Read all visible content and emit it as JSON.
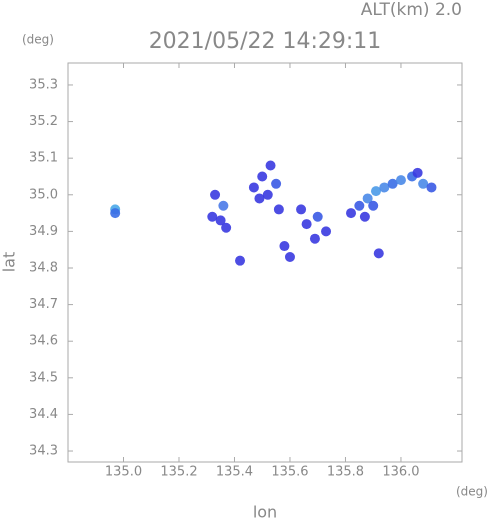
{
  "chart_data": {
    "type": "scatter",
    "title": "2021/05/22 14:29:11",
    "subtitle": "ALT(km) 2.0",
    "y_unit": "(deg)",
    "x_unit": "(deg)",
    "xlabel": "lon",
    "ylabel": "lat",
    "xlim": [
      134.8,
      136.22
    ],
    "ylim": [
      34.27,
      35.36
    ],
    "xticks": [
      {
        "value": 135,
        "label": "135.0"
      },
      135.2,
      135.4,
      135.6,
      135.8,
      {
        "value": 136,
        "label": "136.0"
      }
    ],
    "yticks": [
      34.3,
      34.4,
      34.5,
      34.6,
      34.7,
      34.8,
      34.9,
      {
        "value": 35,
        "label": "35.0"
      },
      35.1,
      35.2,
      35.3
    ],
    "x": [
      134.97,
      134.97,
      135.33,
      135.36,
      135.35,
      135.32,
      135.37,
      135.47,
      135.5,
      135.53,
      135.55,
      135.52,
      135.49,
      135.56,
      135.58,
      135.6,
      135.42,
      135.66,
      135.7,
      135.73,
      135.69,
      135.64,
      135.82,
      135.85,
      135.88,
      135.91,
      135.94,
      135.97,
      136.0,
      136.04,
      136.08,
      136.11,
      135.9,
      135.87,
      136.06,
      135.92
    ],
    "y": [
      34.96,
      34.95,
      35.0,
      34.97,
      34.93,
      34.94,
      34.91,
      35.02,
      35.05,
      35.08,
      35.03,
      35.0,
      34.99,
      34.96,
      34.86,
      34.83,
      34.82,
      34.92,
      34.94,
      34.9,
      34.88,
      34.96,
      34.95,
      34.97,
      34.99,
      35.01,
      35.02,
      35.03,
      35.04,
      35.05,
      35.03,
      35.02,
      34.97,
      34.94,
      35.06,
      34.84
    ],
    "colors": [
      "#4aa8e8",
      "#3a6ee6",
      "#3a3ae0",
      "#4a7ae8",
      "#3a3ae0",
      "#3a3ae0",
      "#3a3ae0",
      "#3a3ae0",
      "#3a3ae0",
      "#3a3ae0",
      "#3a5ae4",
      "#3a3ae0",
      "#3a3ae0",
      "#3a3ae0",
      "#3a3ae0",
      "#3a3ae0",
      "#3a3ae0",
      "#3a3ae0",
      "#3a5ae4",
      "#3a3ae0",
      "#3a3ae0",
      "#3a3ae0",
      "#3a3ae0",
      "#3a5ae4",
      "#4a8ae8",
      "#4a9ae8",
      "#4a8ae8",
      "#3a6ee6",
      "#4a8ae8",
      "#3a6ee6",
      "#4a8ae8",
      "#3a5ae4",
      "#3a5ae4",
      "#3a3ae0",
      "#3a3ae0",
      "#3a3ae0"
    ]
  }
}
